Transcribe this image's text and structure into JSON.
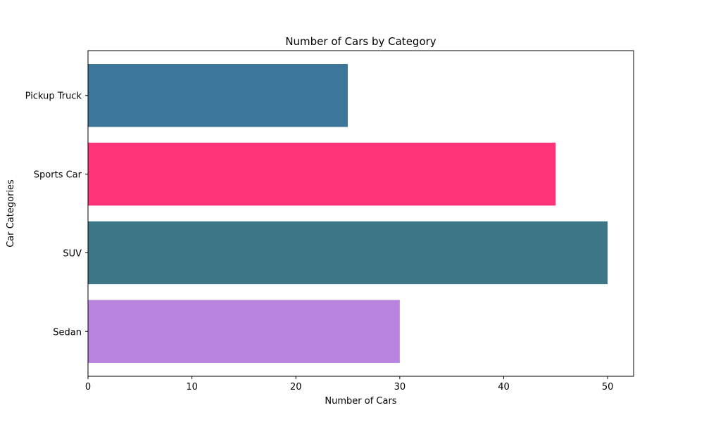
{
  "chart_data": {
    "type": "bar",
    "orientation": "horizontal",
    "title": "Number of Cars by Category",
    "xlabel": "Number of Cars",
    "ylabel": "Car Categories",
    "categories": [
      "Sedan",
      "SUV",
      "Sports Car",
      "Pickup Truck"
    ],
    "values": [
      30,
      50,
      45,
      25
    ],
    "colors": [
      "#b983e0",
      "#3d7687",
      "#ff3377",
      "#3e7699"
    ],
    "xlim": [
      0,
      52.5
    ],
    "xticks": [
      0,
      10,
      20,
      30,
      40,
      50
    ],
    "grid": false,
    "legend": "none"
  }
}
